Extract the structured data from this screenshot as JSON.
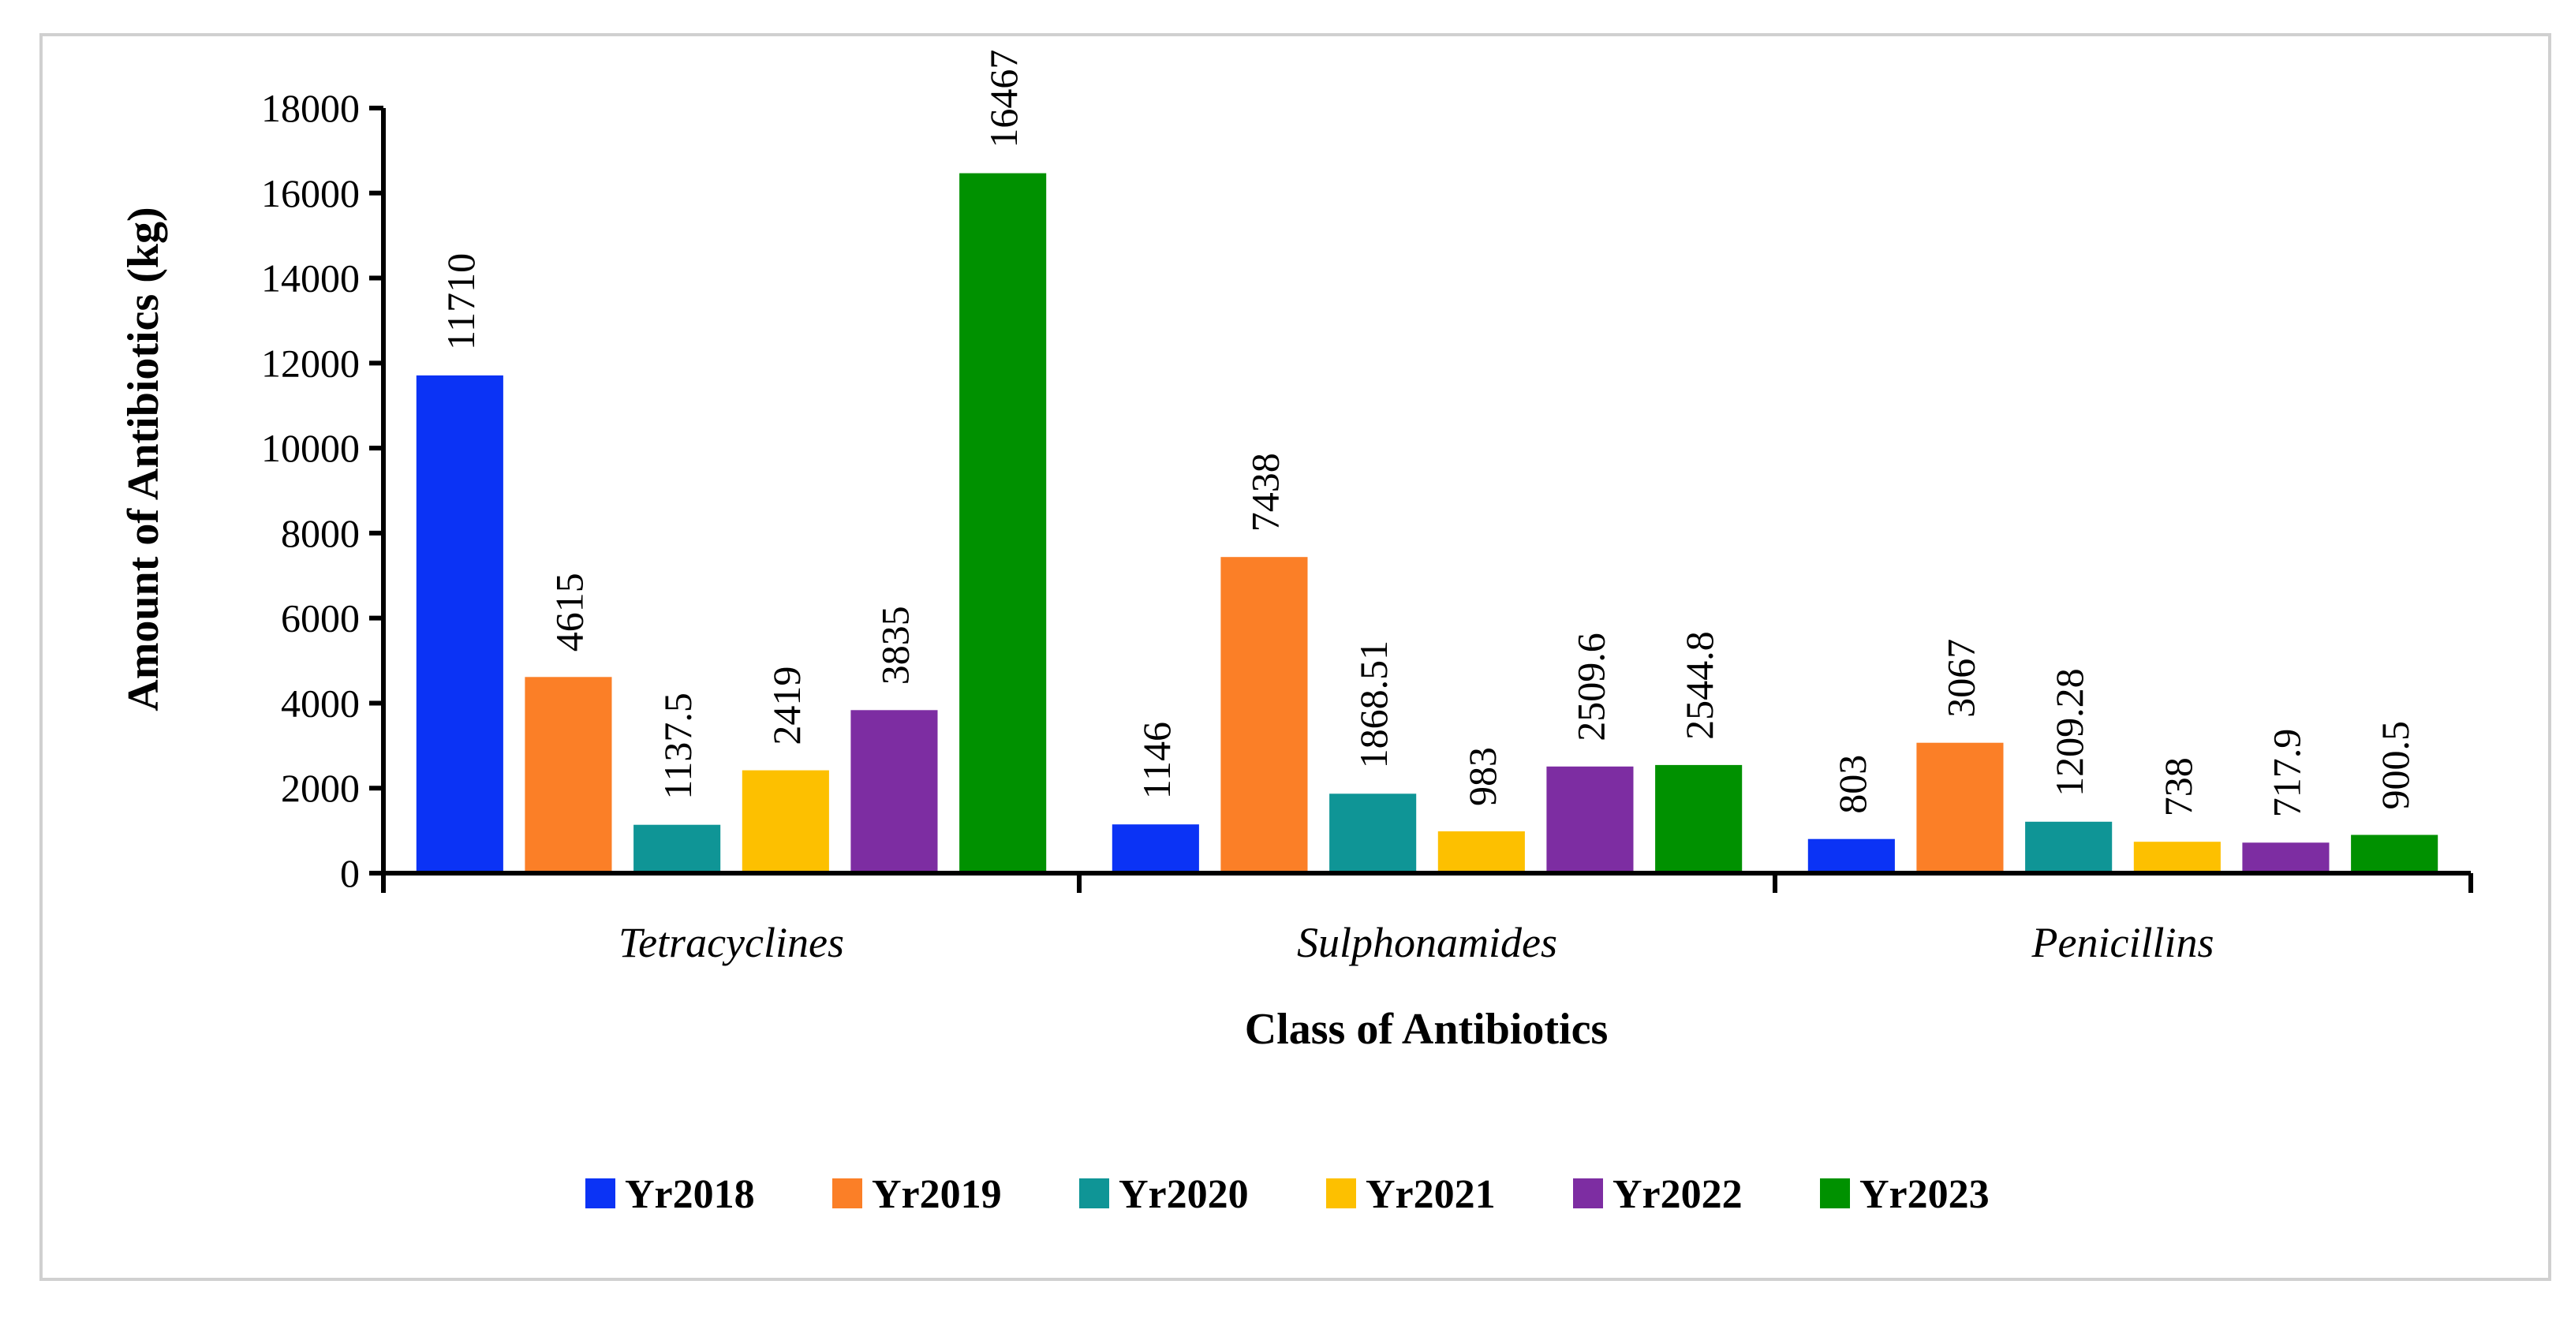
{
  "chart_data": {
    "type": "bar",
    "title": "",
    "xlabel": "Class of Antibiotics",
    "ylabel": "Amount of Antibiotics (kg)",
    "ylim": [
      0,
      18000
    ],
    "yticks": [
      0,
      2000,
      4000,
      6000,
      8000,
      10000,
      12000,
      14000,
      16000,
      18000
    ],
    "categories": [
      "Tetracyclines",
      "Sulphonamides",
      "Penicillins"
    ],
    "legend_position": "bottom",
    "series": [
      {
        "name": "Yr2018",
        "color": "#0b33f5",
        "values": [
          11710,
          1146,
          803
        ],
        "labels": [
          "11710",
          "1146",
          "803"
        ]
      },
      {
        "name": "Yr2019",
        "color": "#fb7f27",
        "values": [
          4615,
          7438,
          3067
        ],
        "labels": [
          "4615",
          "7438",
          "3067"
        ]
      },
      {
        "name": "Yr2020",
        "color": "#0f9596",
        "values": [
          1137.5,
          1868.51,
          1209.28
        ],
        "labels": [
          "1137.5",
          "1868.51",
          "1209.28"
        ]
      },
      {
        "name": "Yr2021",
        "color": "#fdc000",
        "values": [
          2419,
          983,
          738
        ],
        "labels": [
          "2419",
          "983",
          "738"
        ]
      },
      {
        "name": "Yr2022",
        "color": "#7d2da2",
        "values": [
          3835,
          2509.6,
          717.9
        ],
        "labels": [
          "3835",
          "2509.6",
          "717.9"
        ]
      },
      {
        "name": "Yr2023",
        "color": "#009100",
        "values": [
          16467,
          2544.8,
          900.5
        ],
        "labels": [
          "16467",
          "2544.8",
          "900.5"
        ]
      }
    ]
  }
}
